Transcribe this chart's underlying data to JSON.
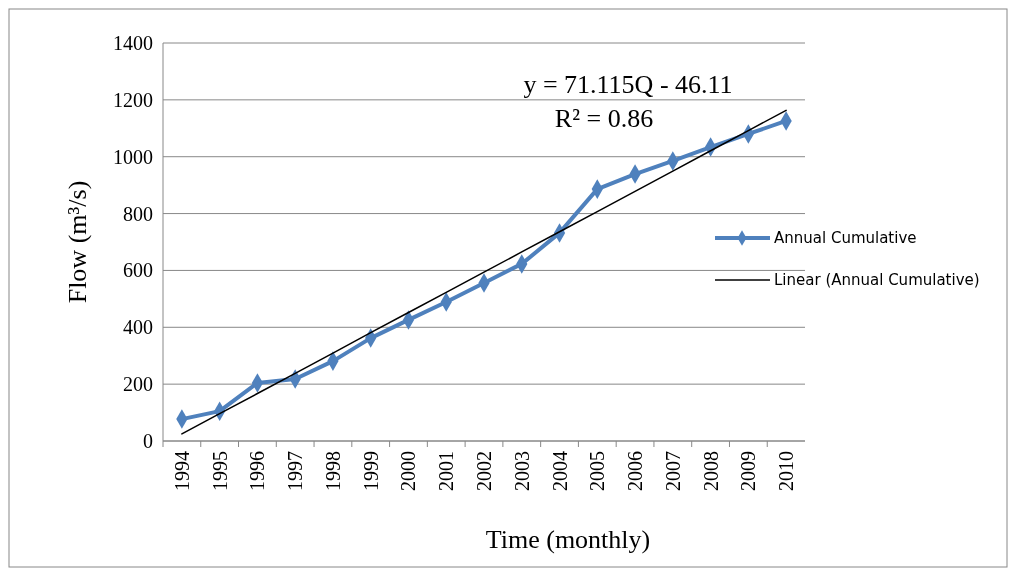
{
  "chart_data": {
    "type": "line",
    "xlabel": "Time (monthly)",
    "ylabel": "Flow (m³/s)",
    "categories": [
      "1994",
      "1995",
      "1996",
      "1997",
      "1998",
      "1999",
      "2000",
      "2001",
      "2002",
      "2003",
      "2004",
      "2005",
      "2006",
      "2007",
      "2008",
      "2009",
      "2010"
    ],
    "series": [
      {
        "name": "Annual Cumulative",
        "color": "#4f81bd",
        "marker": "diamond",
        "values": [
          77,
          105,
          204,
          218,
          281,
          362,
          426,
          489,
          556,
          623,
          732,
          886,
          939,
          985,
          1034,
          1080,
          1126
        ]
      },
      {
        "name": "Linear (Annual Cumulative)",
        "color": "#000000",
        "marker": "none",
        "values": [
          25,
          96,
          167,
          238,
          309,
          381,
          452,
          523,
          594,
          665,
          736,
          807,
          878,
          949,
          1021,
          1092,
          1163
        ]
      }
    ],
    "ylim": [
      0,
      1400
    ],
    "yticks": [
      0,
      200,
      400,
      600,
      800,
      1000,
      1200,
      1400
    ],
    "grid": "y",
    "legend": "right",
    "annotations": [
      "y = 71.115Q - 46.11",
      "R² = 0.86"
    ]
  }
}
